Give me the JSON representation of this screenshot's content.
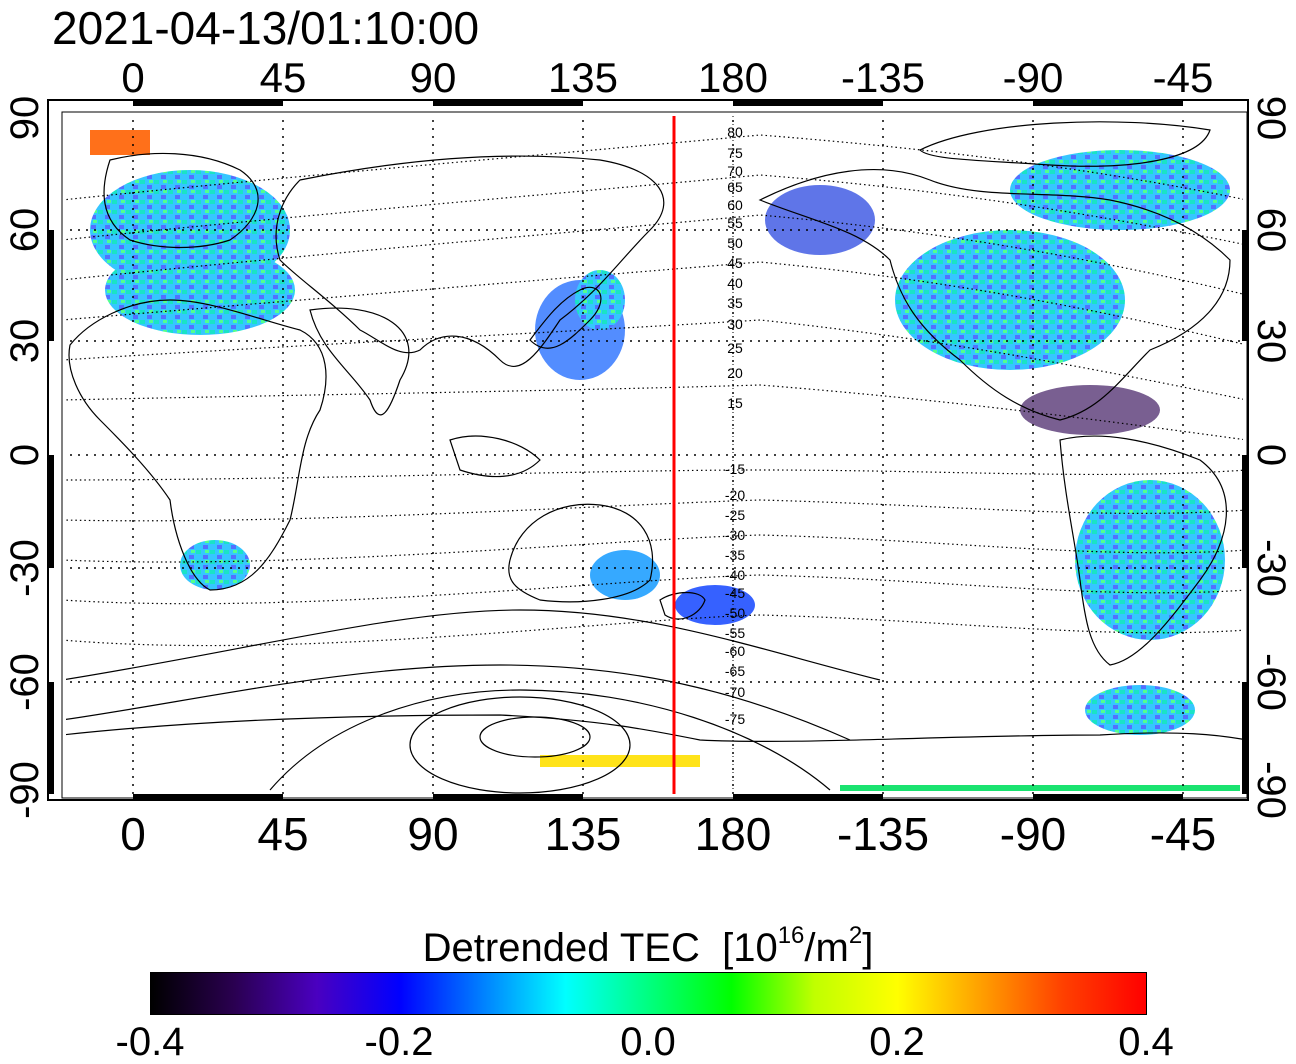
{
  "timestamp": "2021-04-13/01:10:00",
  "axes": {
    "lon_labels": [
      "0",
      "45",
      "90",
      "135",
      "180",
      "-135",
      "-90",
      "-45"
    ],
    "lat_labels": [
      "90",
      "60",
      "30",
      "0",
      "-30",
      "-60",
      "-90"
    ],
    "lon_range": [
      -20,
      320
    ],
    "lat_range": [
      -90,
      90
    ]
  },
  "magnetic_lat_labels_north": [
    "80",
    "75",
    "70",
    "65",
    "60",
    "55",
    "50",
    "45",
    "40",
    "35",
    "30",
    "25",
    "20",
    "15"
  ],
  "magnetic_lat_labels_south": [
    "-15",
    "-20",
    "-25",
    "-30",
    "-35",
    "-40",
    "-45",
    "-50",
    "-55",
    "-60",
    "-65",
    "-70",
    "-75"
  ],
  "marker_line": {
    "lon": 162,
    "color": "#ff0000"
  },
  "legend": {
    "title": "Detrended TEC",
    "unit_prefix": "[10",
    "unit_exp": "16",
    "unit_suffix": "/m",
    "unit_exp2": "2",
    "unit_close": "]",
    "ticks": [
      "-0.4",
      "-0.2",
      "0.0",
      "0.2",
      "0.4"
    ],
    "range": [
      -0.4,
      0.4
    ]
  },
  "colors": {
    "gradient": [
      "#000000",
      "#2a0050",
      "#4a00c0",
      "#0000ff",
      "#0080ff",
      "#00ffff",
      "#00ff80",
      "#00ff00",
      "#c0ff00",
      "#ffff00",
      "#ffa000",
      "#ff4000",
      "#ff0000"
    ]
  }
}
